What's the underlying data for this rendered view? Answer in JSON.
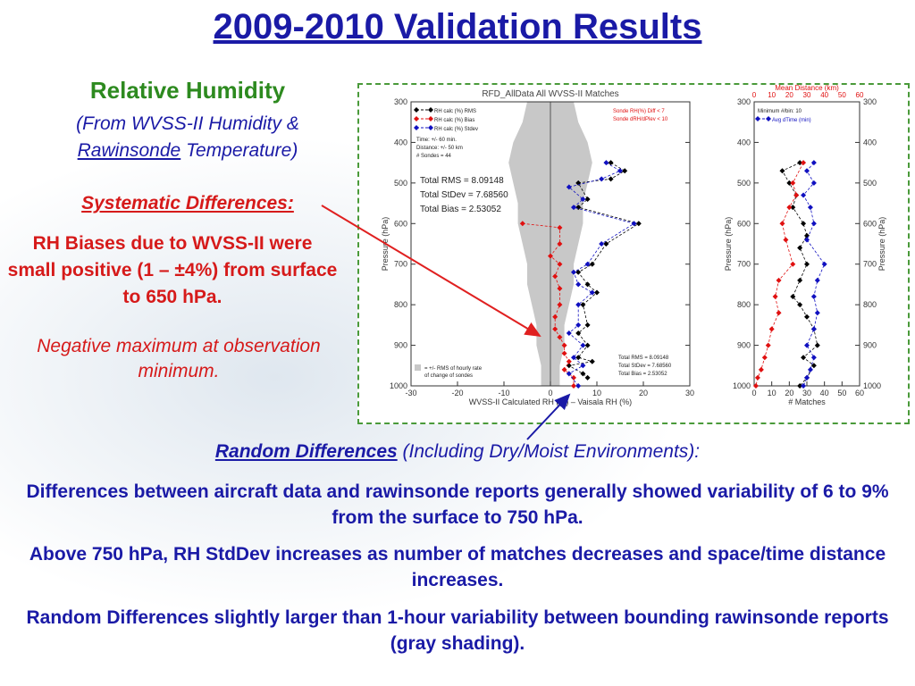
{
  "slide": {
    "title": "2009-2010 Validation Results",
    "rh_heading": "Relative Humidity",
    "rh_sub_line1": "(From WVSS-II Humidity &",
    "rh_sub_rawinsonde": "Rawinsonde",
    "rh_sub_rest": "Temperature)",
    "systematic_heading": "Systematic Differences:",
    "systematic_body": "RH Biases due to WVSS-II were small positive (1 – ±4%) from surface to 650 hPa.",
    "negative_note": "Negative maximum at observation minimum.",
    "random_heading_bold": "Random Differences",
    "random_heading_rest": "(Including Dry/Moist Environments):",
    "para1": "Differences between aircraft data and rawinsonde reports generally showed variability of 6 to 9% from the surface to 750 hPa.",
    "para2": "Above 750 hPa, RH StdDev increases as number of matches decreases and space/time distance increases.",
    "para3": "Random Differences slightly larger than 1-hour variability between bounding rawinsonde reports (gray shading)."
  },
  "colors": {
    "title": "#1a1aa6",
    "green": "#2d8a1f",
    "red": "#d61a1a",
    "blue": "#1a1aa6",
    "arrow_red": "#e02020",
    "arrow_blue": "#1a1aa6",
    "frame": "#4a9a3a"
  },
  "chart_data": [
    {
      "type": "line",
      "title": "RFD_AllData All WVSS-II Matches",
      "xlabel": "WVSS-II Calculated RH (%) – Vaisala RH (%)",
      "ylabel": "Pressure (hPa)",
      "xlim": [
        -30,
        30
      ],
      "ylim": [
        1000,
        300
      ],
      "xticks": [
        "-30",
        "-20",
        "-10",
        "0",
        "10",
        "20",
        "30"
      ],
      "yticks": [
        "300",
        "400",
        "500",
        "600",
        "700",
        "800",
        "900",
        "1000"
      ],
      "legend": [
        "RH calc (%) RMS",
        "RH calc (%) Bias",
        "RH calc (%) Stdev"
      ],
      "info_lines": [
        "Time: +/- 60 min.",
        "Distance: +/- 50 km",
        "# Sondes = 44"
      ],
      "criteria": [
        "Sonde RH(%) Diff < 7",
        "Sonde dRH/dPlev < 10"
      ],
      "totals_big": [
        "Total RMS = 8.09148",
        "Total StDev = 7.68560",
        "Total Bias = 2.53052"
      ],
      "totals_small": [
        "Total RMS = 8.09148",
        "Total StDev = 7.68560",
        "Total Bias = 2.53052"
      ],
      "shading_note": [
        "= +/- RMS of hourly rate",
        "of change of sondes"
      ],
      "shading_halfwidth": {
        "pressure": [
          300,
          350,
          400,
          450,
          500,
          550,
          600,
          650,
          700,
          750,
          800,
          850,
          900,
          950,
          1000
        ],
        "value": [
          5,
          6,
          8,
          9,
          8,
          7,
          7,
          6,
          5,
          5,
          4,
          3,
          3,
          2,
          2
        ]
      },
      "series": [
        {
          "name": "RH calc (%) RMS",
          "color": "#000000",
          "pressure": [
            300,
            450,
            470,
            490,
            500,
            540,
            560,
            600,
            650,
            700,
            720,
            750,
            770,
            800,
            850,
            870,
            900,
            930,
            940,
            950,
            970,
            980,
            1000
          ],
          "values": [
            null,
            13,
            16,
            13,
            6,
            8,
            6,
            19,
            12,
            9,
            6,
            8,
            10,
            7,
            8,
            6,
            8,
            6,
            9,
            4,
            7,
            8,
            null
          ]
        },
        {
          "name": "RH calc (%) Bias",
          "color": "#e01010",
          "pressure": [
            600,
            610,
            650,
            680,
            700,
            730,
            760,
            800,
            830,
            860,
            880,
            900,
            920,
            940,
            960,
            980,
            1000
          ],
          "values": [
            -6,
            2,
            2,
            0,
            2,
            1,
            2,
            2,
            1,
            1,
            2,
            3,
            3,
            4,
            3,
            5,
            5
          ]
        },
        {
          "name": "RH calc (%) Stdev",
          "color": "#1010c0",
          "pressure": [
            450,
            470,
            490,
            510,
            540,
            560,
            600,
            650,
            700,
            720,
            750,
            770,
            800,
            850,
            870,
            900,
            930,
            950,
            970,
            1000
          ],
          "values": [
            12,
            15,
            11,
            4,
            7,
            5,
            18,
            11,
            8,
            5,
            6,
            9,
            6,
            6,
            4,
            7,
            5,
            7,
            4,
            6
          ]
        }
      ]
    },
    {
      "type": "line",
      "title": "Mean Distance (km)",
      "xlabel": "# Matches",
      "ylabel": "Pressure (hPa)",
      "xlim": [
        0,
        60
      ],
      "ylim": [
        1000,
        300
      ],
      "xticks": [
        "0",
        "10",
        "20",
        "30",
        "40",
        "50",
        "60"
      ],
      "top_ticks": [
        "0",
        "10",
        "20",
        "30",
        "40",
        "50",
        "60"
      ],
      "yticks": [
        "300",
        "400",
        "500",
        "600",
        "700",
        "800",
        "900",
        "1000"
      ],
      "legend": [
        "Minimum #/bin: 10",
        "Avg dTime (min)"
      ],
      "series": [
        {
          "name": "# Matches",
          "color": "#000000",
          "pressure": [
            450,
            470,
            500,
            530,
            560,
            600,
            630,
            660,
            700,
            740,
            780,
            800,
            830,
            860,
            900,
            930,
            950,
            980,
            1000
          ],
          "values": [
            26,
            16,
            20,
            24,
            22,
            28,
            30,
            26,
            30,
            26,
            22,
            26,
            30,
            34,
            36,
            28,
            34,
            30,
            26
          ]
        },
        {
          "name": "Mean Distance",
          "color": "#e01010",
          "pressure": [
            450,
            500,
            530,
            560,
            600,
            640,
            700,
            740,
            780,
            820,
            860,
            900,
            930,
            960,
            980,
            1000
          ],
          "values": [
            28,
            22,
            24,
            20,
            16,
            18,
            22,
            14,
            12,
            14,
            10,
            8,
            6,
            4,
            2,
            1
          ]
        },
        {
          "name": "Avg dTime (min)",
          "color": "#1010c0",
          "pressure": [
            450,
            470,
            500,
            530,
            560,
            600,
            640,
            700,
            740,
            780,
            820,
            860,
            900,
            930,
            960,
            980,
            1000
          ],
          "values": [
            34,
            30,
            34,
            28,
            32,
            34,
            30,
            40,
            36,
            34,
            36,
            34,
            30,
            34,
            32,
            30,
            28
          ]
        }
      ]
    }
  ]
}
